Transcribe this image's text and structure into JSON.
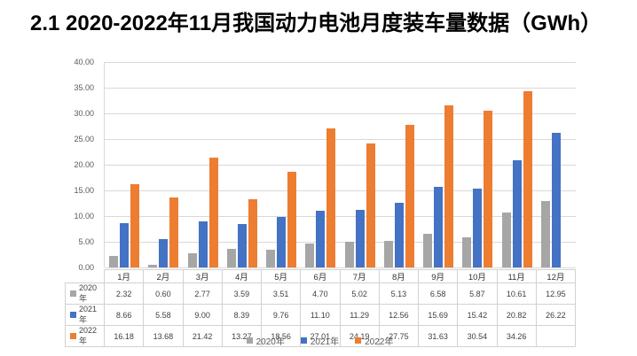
{
  "page_title": "2.1 2020-2022年11月我国动力电池月度装车量数据（GWh）",
  "colors": {
    "series_2020": "#a6a6a6",
    "series_2021": "#4472c4",
    "series_2022": "#ed7d31",
    "gridline": "#d9d9d9",
    "table_border": "#d2d2d2",
    "axis_text": "#595959",
    "cell_text": "#404040",
    "title_text": "#000000"
  },
  "chart_data": {
    "type": "bar",
    "title": "2.1 2020-2022年11月我国动力电池月度装车量数据（GWh）",
    "xlabel": "",
    "ylabel": "",
    "ylim": [
      0,
      40
    ],
    "y_tick_labels": [
      "40.00",
      "35.00",
      "30.00",
      "25.00",
      "20.00",
      "15.00",
      "10.00",
      "5.00",
      "0.00"
    ],
    "grid": true,
    "legend_position": "bottom",
    "data_table_shown": true,
    "categories": [
      "1月",
      "2月",
      "3月",
      "4月",
      "5月",
      "6月",
      "7月",
      "8月",
      "9月",
      "10月",
      "11月",
      "12月"
    ],
    "series": [
      {
        "name": "2020年",
        "color_key": "series_2020",
        "values": [
          2.32,
          0.6,
          2.77,
          3.59,
          3.51,
          4.7,
          5.02,
          5.13,
          6.58,
          5.87,
          10.61,
          12.95
        ]
      },
      {
        "name": "2021年",
        "color_key": "series_2021",
        "values": [
          8.66,
          5.58,
          9.0,
          8.39,
          9.76,
          11.1,
          11.29,
          12.56,
          15.69,
          15.42,
          20.82,
          26.22
        ]
      },
      {
        "name": "2022年",
        "color_key": "series_2022",
        "values": [
          16.18,
          13.68,
          21.42,
          13.27,
          18.56,
          27.01,
          24.19,
          27.75,
          31.63,
          30.54,
          34.26,
          null
        ]
      }
    ]
  }
}
